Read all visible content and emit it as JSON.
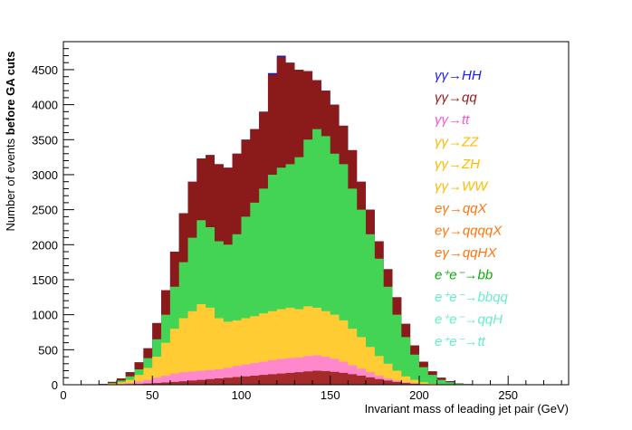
{
  "chart_data": {
    "type": "area",
    "xlabel": "Invariant mass of leading jet pair (GeV)",
    "ylabel_prefix": "Number of events ",
    "ylabel_bold": "before GA cuts",
    "xlim": [
      0,
      284
    ],
    "ylim": [
      0,
      4900
    ],
    "x_ticks": [
      0,
      50,
      100,
      150,
      200,
      250
    ],
    "y_ticks": [
      0,
      500,
      1000,
      1500,
      2000,
      2500,
      3000,
      3500,
      4000,
      4500
    ],
    "bin_width": 5,
    "x": [
      22.5,
      27.5,
      32.5,
      37.5,
      42.5,
      47.5,
      52.5,
      57.5,
      62.5,
      67.5,
      72.5,
      77.5,
      82.5,
      87.5,
      92.5,
      97.5,
      102.5,
      107.5,
      112.5,
      117.5,
      122.5,
      127.5,
      132.5,
      137.5,
      142.5,
      147.5,
      152.5,
      157.5,
      162.5,
      167.5,
      172.5,
      177.5,
      182.5,
      187.5,
      192.5,
      197.5,
      202.5,
      207.5,
      212.5,
      217.5,
      222.5,
      227.5,
      232.5,
      237.5
    ],
    "stacked_totals": [
      {
        "name": "γγ→HH",
        "color": "#0b1fd6",
        "values": [
          10,
          40,
          90,
          180,
          320,
          520,
          880,
          1350,
          1900,
          2450,
          2900,
          3230,
          3280,
          3150,
          3100,
          3300,
          3500,
          3650,
          3900,
          4450,
          4700,
          4600,
          4500,
          4480,
          4350,
          4200,
          4000,
          3700,
          3350,
          2900,
          2500,
          2050,
          1650,
          1250,
          870,
          560,
          330,
          190,
          100,
          50,
          20,
          8,
          3,
          1
        ]
      },
      {
        "name": "γγ→qq",
        "color": "#8b1a1a",
        "values": [
          10,
          40,
          90,
          180,
          320,
          520,
          880,
          1350,
          1900,
          2450,
          2900,
          3230,
          3280,
          3150,
          3100,
          3300,
          3500,
          3650,
          3900,
          4430,
          4680,
          4600,
          4500,
          4480,
          4350,
          4200,
          4000,
          3700,
          3350,
          2900,
          2500,
          2050,
          1650,
          1250,
          870,
          560,
          330,
          190,
          100,
          50,
          20,
          8,
          3,
          1
        ]
      },
      {
        "name": "e⁺e⁻→bb",
        "color": "#44d455",
        "values": [
          5,
          25,
          60,
          120,
          220,
          380,
          650,
          1000,
          1400,
          1750,
          2100,
          2350,
          2250,
          2050,
          2000,
          2150,
          2400,
          2600,
          2800,
          3000,
          3100,
          3150,
          3250,
          3500,
          3650,
          3550,
          3300,
          3150,
          2800,
          2500,
          2150,
          1800,
          1400,
          1000,
          680,
          430,
          250,
          140,
          70,
          35,
          15,
          6,
          2,
          1
        ]
      },
      {
        "name": "γγ→ZZ",
        "color": "#ffcc33",
        "values": [
          3,
          15,
          35,
          70,
          140,
          240,
          400,
          600,
          800,
          950,
          1050,
          1150,
          1100,
          950,
          900,
          920,
          950,
          980,
          1020,
          1050,
          1080,
          1100,
          1080,
          1120,
          1100,
          1050,
          1000,
          920,
          800,
          680,
          540,
          410,
          300,
          200,
          120,
          70,
          35,
          15,
          7,
          3,
          1,
          0,
          0,
          0
        ]
      },
      {
        "name": "γγ→tt",
        "color": "#ff88cc",
        "values": [
          1,
          5,
          12,
          25,
          45,
          70,
          100,
          130,
          160,
          180,
          190,
          200,
          210,
          220,
          240,
          270,
          290,
          310,
          330,
          350,
          370,
          380,
          390,
          410,
          420,
          400,
          370,
          330,
          280,
          230,
          180,
          130,
          90,
          60,
          35,
          20,
          10,
          5,
          2,
          1,
          0,
          0,
          0,
          0
        ]
      },
      {
        "name": "γγ→qq",
        "color": "#a52a2a",
        "values": [
          0,
          2,
          4,
          8,
          12,
          18,
          25,
          32,
          40,
          50,
          60,
          70,
          80,
          90,
          100,
          110,
          120,
          130,
          140,
          150,
          160,
          170,
          180,
          190,
          200,
          195,
          185,
          170,
          150,
          130,
          105,
          80,
          60,
          40,
          25,
          15,
          8,
          4,
          2,
          1,
          0,
          0,
          0,
          0
        ]
      }
    ]
  },
  "legend": {
    "items": [
      {
        "label": "γγ→HH",
        "color": "#1a1aff"
      },
      {
        "label": "γγ→qq",
        "color": "#a01c1c"
      },
      {
        "label": "γγ→tt",
        "color": "#ff55cc"
      },
      {
        "label": "γγ→ZZ",
        "color": "#ffbb00"
      },
      {
        "label": "γγ→ZH",
        "color": "#ffbb00"
      },
      {
        "label": "γγ→WW",
        "color": "#ffbb00"
      },
      {
        "label": "eγ→qqX",
        "color": "#ff7711"
      },
      {
        "label": "eγ→qqqqX",
        "color": "#ff7711"
      },
      {
        "label": "eγ→qqHX",
        "color": "#ff7711"
      },
      {
        "label": "e⁺e⁻→bb",
        "color": "#11aa11"
      },
      {
        "label": "e⁺e⁻→bbqq",
        "color": "#66eecc"
      },
      {
        "label": "e⁺e⁻→qqH",
        "color": "#66eecc"
      },
      {
        "label": "e⁺e⁻→tt",
        "color": "#66eecc"
      }
    ]
  }
}
